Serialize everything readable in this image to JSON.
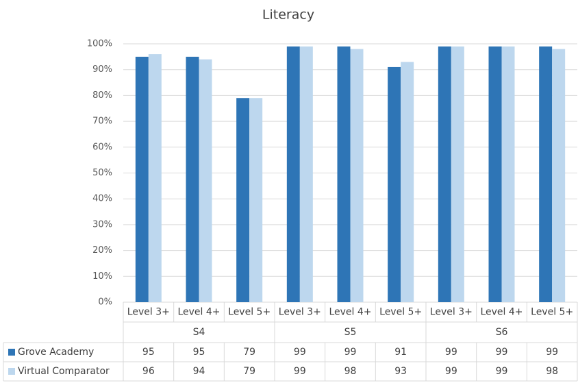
{
  "chart_data": {
    "type": "bar",
    "title": "Literacy",
    "groups": [
      {
        "name": "S4",
        "categories": [
          "Level 3+",
          "Level 4+",
          "Level 5+"
        ]
      },
      {
        "name": "S5",
        "categories": [
          "Level 3+",
          "Level 4+",
          "Level 5+"
        ]
      },
      {
        "name": "S6",
        "categories": [
          "Level 3+",
          "Level 4+",
          "Level 5+"
        ]
      }
    ],
    "series": [
      {
        "name": "Grove Academy",
        "color": "#2e75b6",
        "values": [
          95,
          95,
          79,
          99,
          99,
          91,
          99,
          99,
          99
        ]
      },
      {
        "name": "Virtual Comparator",
        "color": "#bdd7ee",
        "values": [
          96,
          94,
          79,
          99,
          98,
          93,
          99,
          99,
          98
        ]
      }
    ],
    "ylim": [
      0,
      100
    ],
    "yticks": [
      {
        "value": 0,
        "label": "0%"
      },
      {
        "value": 10,
        "label": "10%"
      },
      {
        "value": 20,
        "label": "20%"
      },
      {
        "value": 30,
        "label": "30%"
      },
      {
        "value": 40,
        "label": "40%"
      },
      {
        "value": 50,
        "label": "50%"
      },
      {
        "value": 60,
        "label": "60%"
      },
      {
        "value": 70,
        "label": "70%"
      },
      {
        "value": 80,
        "label": "80%"
      },
      {
        "value": 90,
        "label": "90%"
      },
      {
        "value": 100,
        "label": "100%"
      }
    ],
    "grid": true
  }
}
